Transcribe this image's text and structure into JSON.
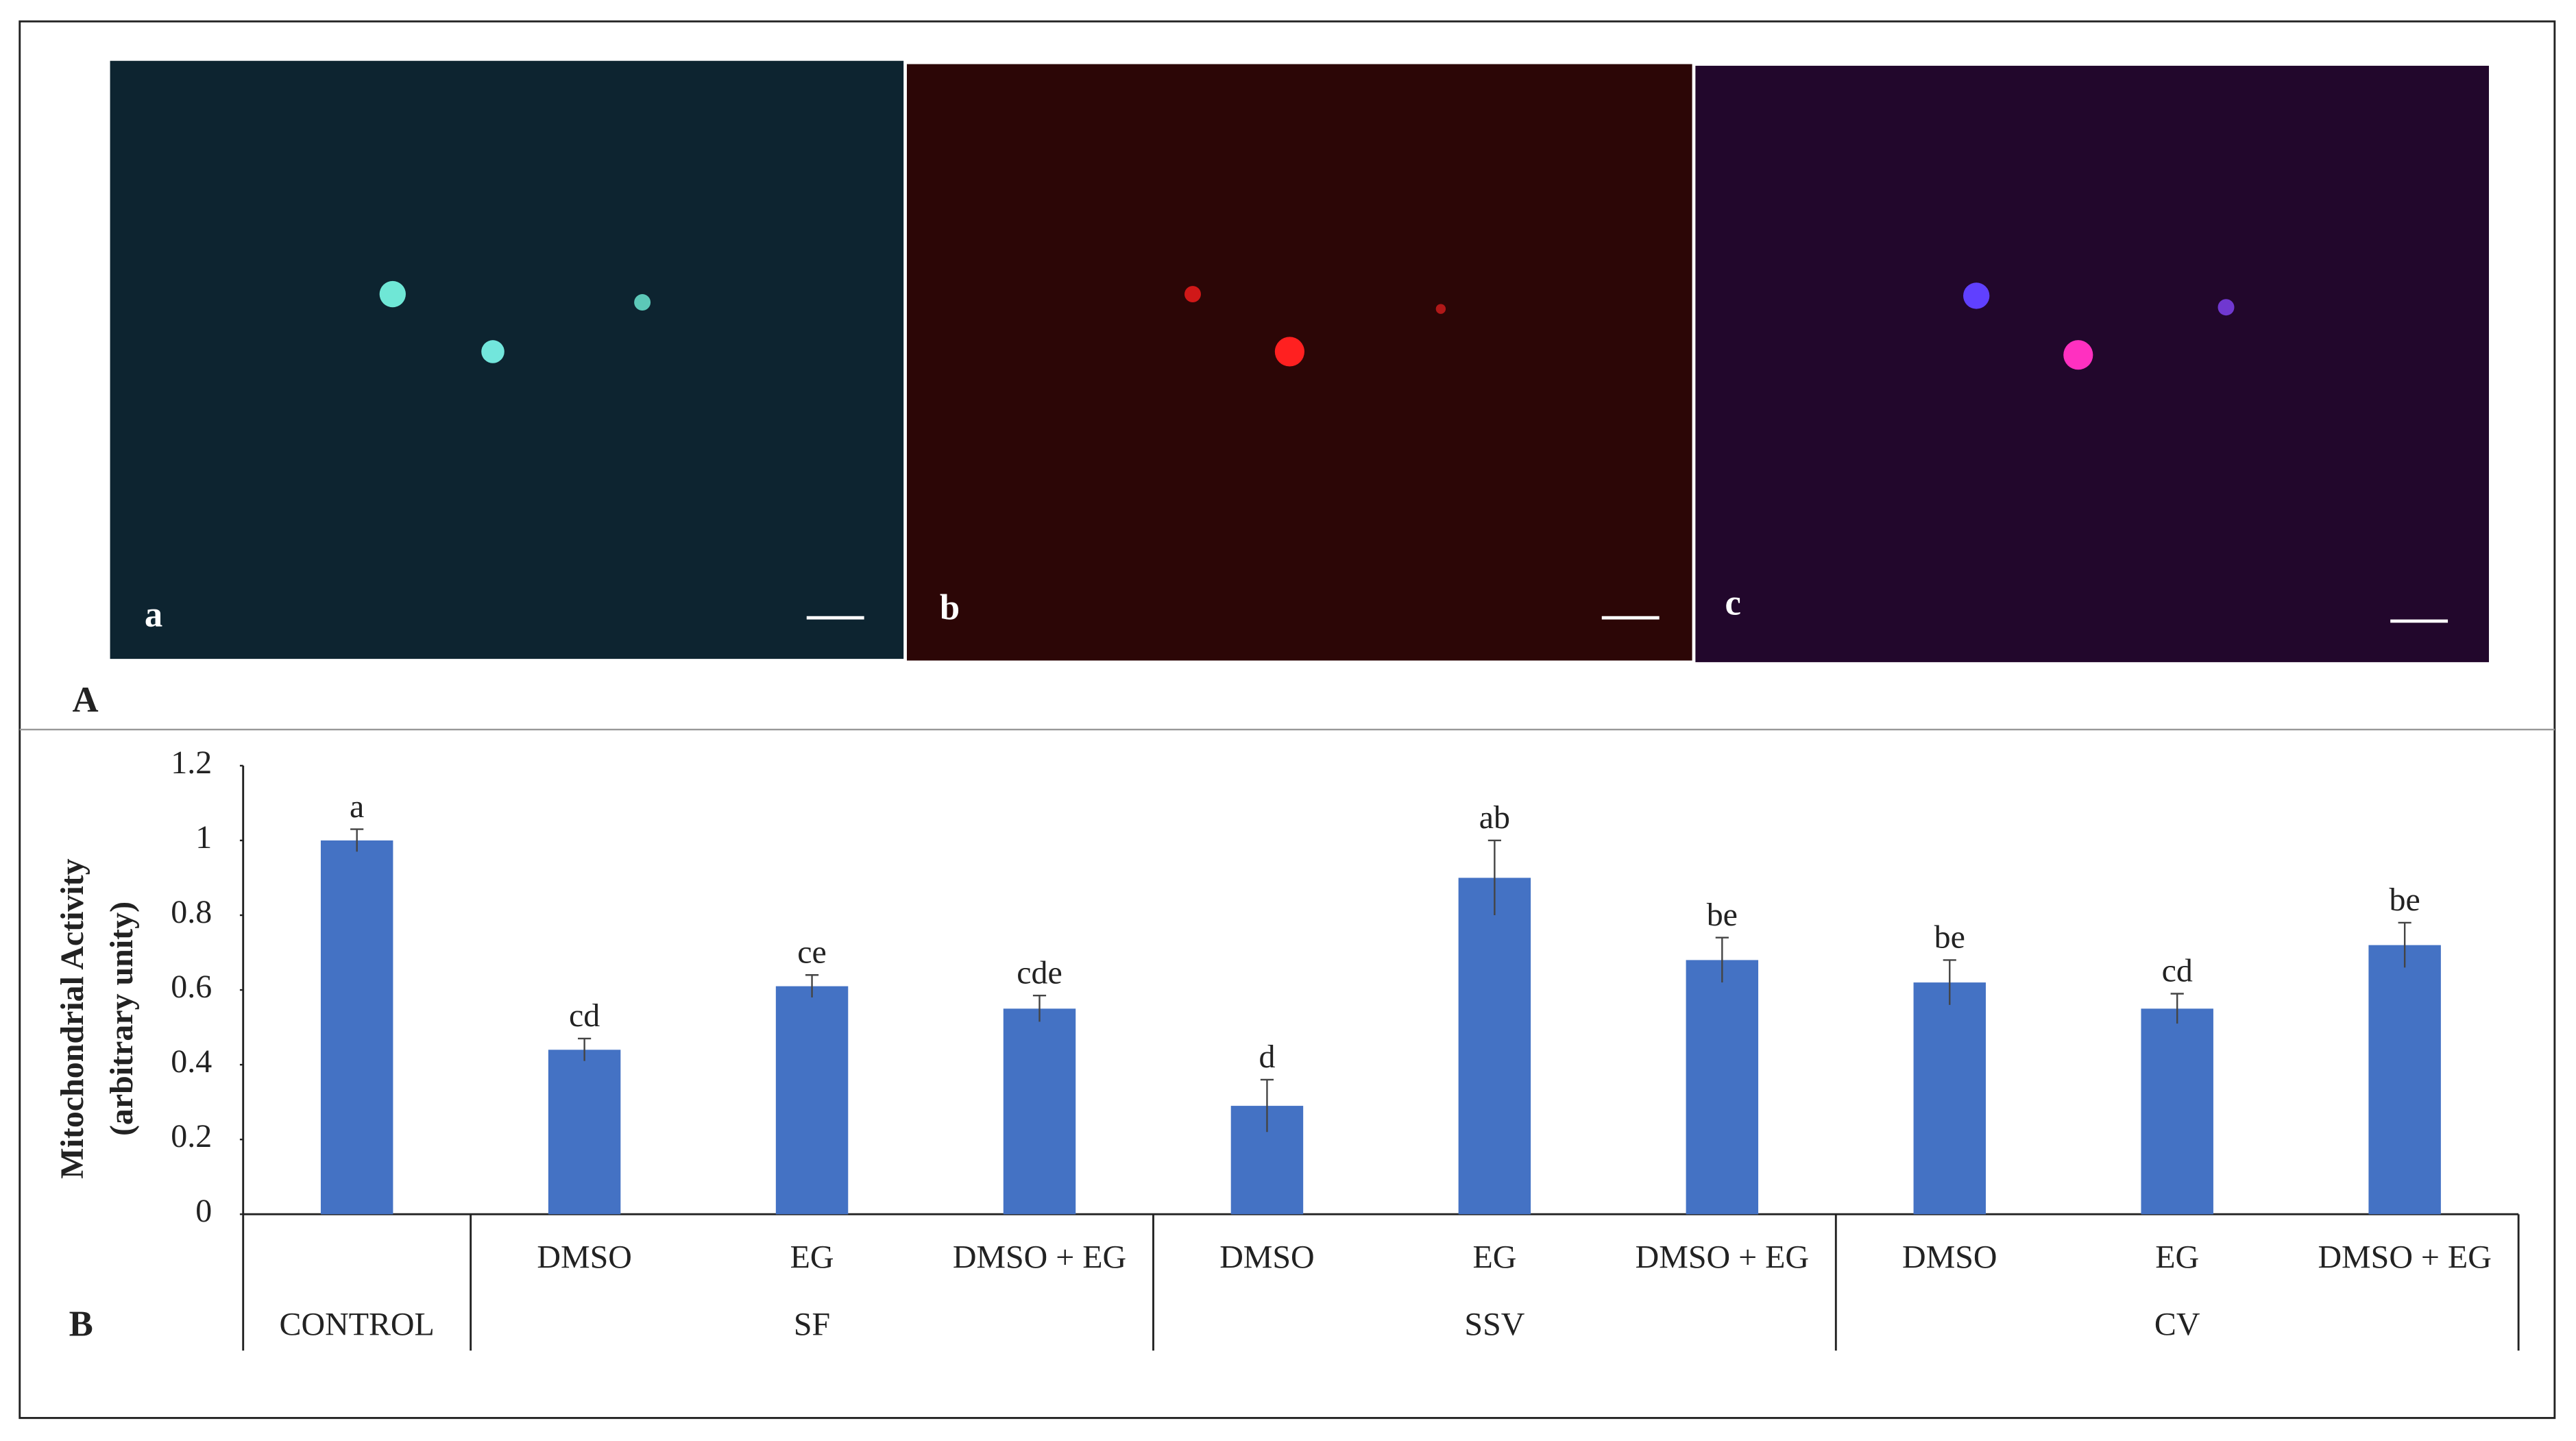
{
  "figure_labels": {
    "top": "A",
    "bottom": "B"
  },
  "panels": [
    {
      "label": "a"
    },
    {
      "label": "b"
    },
    {
      "label": "c"
    }
  ],
  "chart_data": {
    "type": "bar",
    "ylabel": [
      "Mitochondrial Activity",
      "(arbitrary unity)"
    ],
    "color": "#4472c4",
    "ylim": [
      0,
      1.2
    ],
    "yticks": [
      0,
      0.2,
      0.4,
      0.6,
      0.8,
      1,
      1.2
    ],
    "groups": [
      {
        "label": "CONTROL",
        "categories": [
          null
        ],
        "values": [
          1.0
        ],
        "errors": [
          0.03
        ],
        "letters": [
          "a"
        ]
      },
      {
        "label": "SF",
        "categories": [
          "DMSO",
          "EG",
          "DMSO  + EG"
        ],
        "values": [
          0.44,
          0.61,
          0.55
        ],
        "errors": [
          0.03,
          0.03,
          0.035
        ],
        "letters": [
          "cd",
          "ce",
          "cde"
        ]
      },
      {
        "label": "SSV",
        "categories": [
          "DMSO",
          "EG",
          "DMSO + EG"
        ],
        "values": [
          0.29,
          0.9,
          0.68
        ],
        "errors": [
          0.07,
          0.1,
          0.06
        ],
        "letters": [
          "d",
          "ab",
          "be"
        ]
      },
      {
        "label": "CV",
        "categories": [
          "DMSO",
          "EG",
          "DMSO + EG"
        ],
        "values": [
          0.62,
          0.55,
          0.72
        ],
        "errors": [
          0.06,
          0.04,
          0.06
        ],
        "letters": [
          "be",
          "cd",
          "be"
        ]
      }
    ]
  }
}
